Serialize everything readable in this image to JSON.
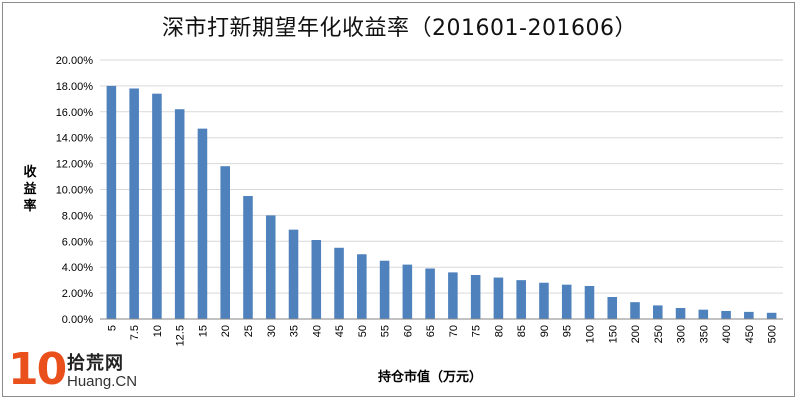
{
  "chart_data": {
    "type": "bar",
    "title": "深市打新期望年化收益率（201601-201606）",
    "xlabel": "持仓市值（万元）",
    "ylabel": "收益率",
    "categories": [
      "5",
      "7.5",
      "10",
      "12.5",
      "15",
      "20",
      "25",
      "30",
      "35",
      "40",
      "45",
      "50",
      "55",
      "60",
      "65",
      "70",
      "75",
      "80",
      "85",
      "90",
      "95",
      "100",
      "150",
      "200",
      "250",
      "300",
      "350",
      "400",
      "450",
      "500"
    ],
    "values": [
      18.0,
      17.8,
      17.4,
      16.2,
      14.7,
      11.8,
      9.5,
      8.0,
      6.9,
      6.1,
      5.5,
      5.0,
      4.5,
      4.2,
      3.9,
      3.6,
      3.4,
      3.2,
      3.0,
      2.8,
      2.65,
      2.55,
      1.7,
      1.3,
      1.05,
      0.85,
      0.72,
      0.62,
      0.55,
      0.48
    ],
    "ylim": [
      0,
      20
    ],
    "yticks": [
      "0.00%",
      "2.00%",
      "4.00%",
      "6.00%",
      "8.00%",
      "10.00%",
      "12.00%",
      "14.00%",
      "16.00%",
      "18.00%",
      "20.00%"
    ],
    "grid": true,
    "legend": "none",
    "bar_color": "#4f81bd"
  },
  "watermark": {
    "number": "10",
    "name": "拾荒网",
    "domain": "Huang.CN"
  },
  "colors": {
    "accent": "#e9501b",
    "grid": "#d9d9d9",
    "axis": "#868686"
  }
}
